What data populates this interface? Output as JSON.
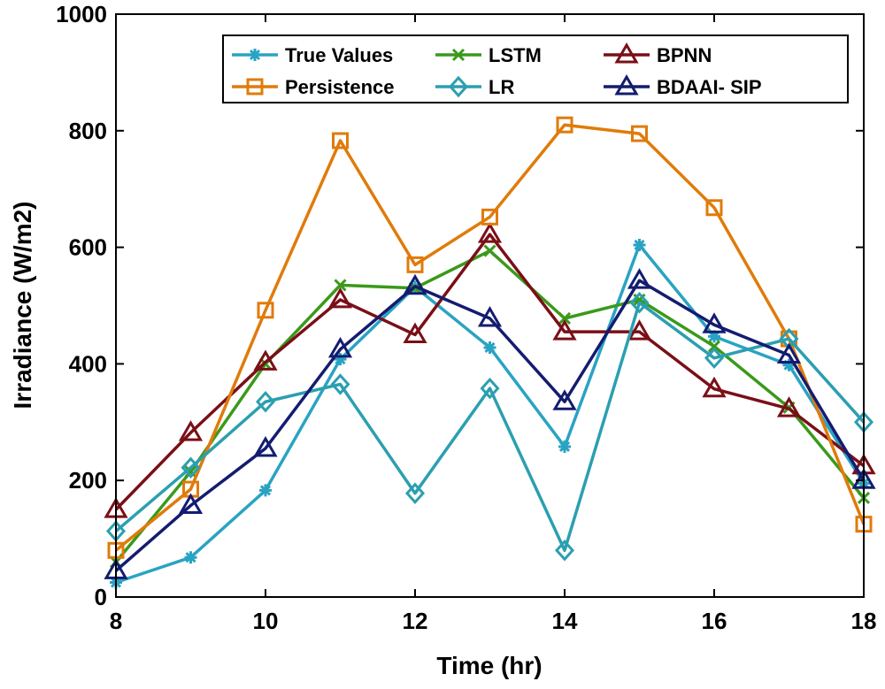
{
  "chart_data": {
    "type": "line",
    "title": "",
    "xlabel": "Time (hr)",
    "ylabel": "Irradiance (W/m2)",
    "xlim": [
      8,
      18
    ],
    "ylim": [
      0,
      1000
    ],
    "xticks": [
      8,
      10,
      12,
      14,
      16,
      18
    ],
    "yticks": [
      0,
      200,
      400,
      600,
      800,
      1000
    ],
    "xtick_labels": [
      "8",
      "10",
      "12",
      "14",
      "16",
      "18"
    ],
    "ytick_labels": [
      "0",
      "200",
      "400",
      "600",
      "800",
      "1000"
    ],
    "grid": false,
    "legend_position": "top-right",
    "x": [
      8,
      9,
      10,
      11,
      12,
      13,
      14,
      15,
      16,
      17,
      18
    ],
    "series": [
      {
        "name": "True Values",
        "color": "#2aa3c3",
        "marker": "asterisk",
        "values": [
          25,
          68,
          183,
          408,
          532,
          428,
          258,
          604,
          447,
          398,
          195
        ]
      },
      {
        "name": "LSTM",
        "color": "#3a9a1a",
        "marker": "x",
        "values": [
          60,
          215,
          400,
          535,
          530,
          594,
          478,
          510,
          430,
          325,
          170
        ]
      },
      {
        "name": "BPNN",
        "color": "#7a0f17",
        "marker": "triangle",
        "values": [
          150,
          282,
          403,
          510,
          450,
          622,
          455,
          455,
          357,
          323,
          225
        ]
      },
      {
        "name": "Persistence",
        "color": "#e07b0a",
        "marker": "square",
        "values": [
          80,
          185,
          492,
          783,
          570,
          652,
          810,
          795,
          668,
          443,
          125
        ]
      },
      {
        "name": "LR",
        "color": "#2b9fb0",
        "marker": "diamond",
        "values": [
          113,
          222,
          335,
          365,
          178,
          358,
          80,
          505,
          410,
          443,
          300
        ]
      },
      {
        "name": "BDAAI- SIP",
        "color": "#141c70",
        "marker": "triangle",
        "values": [
          45,
          157,
          255,
          425,
          533,
          478,
          335,
          543,
          467,
          415,
          200
        ]
      }
    ]
  }
}
